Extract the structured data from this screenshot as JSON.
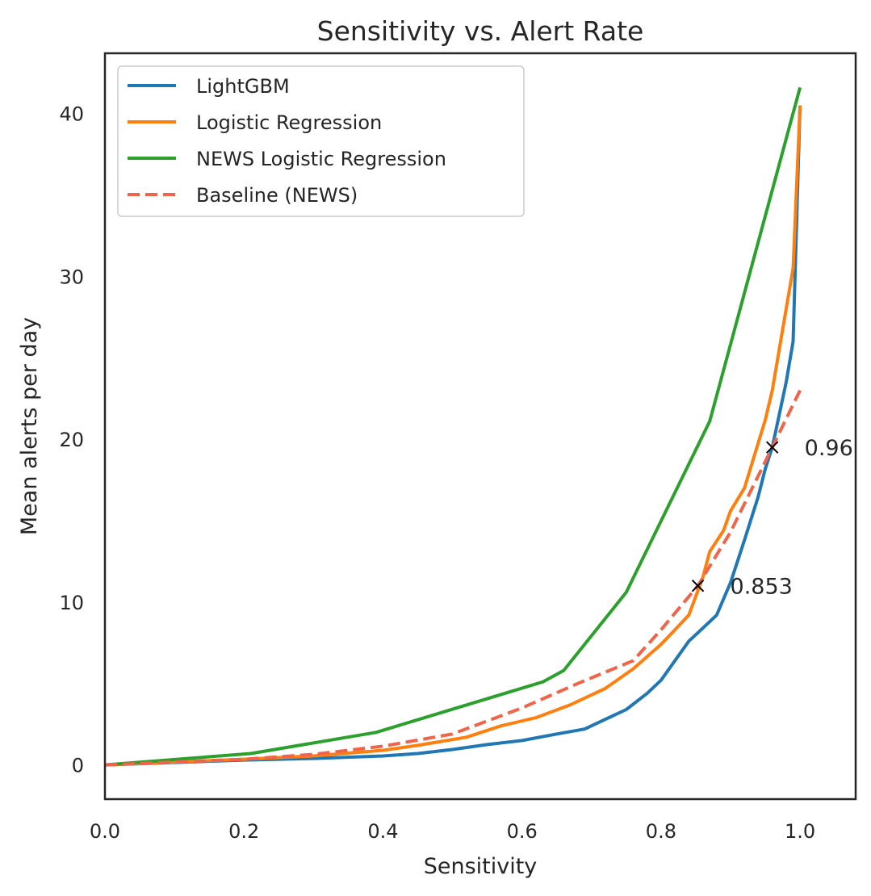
{
  "chart_data": {
    "type": "line",
    "title": "Sensitivity vs. Alert Rate",
    "xlabel": "Sensitivity",
    "ylabel": "Mean alerts per day",
    "xlim": [
      0.0,
      1.08
    ],
    "ylim": [
      -2.1,
      43.7
    ],
    "xticks": [
      "0.0",
      "0.2",
      "0.4",
      "0.6",
      "0.8",
      "1.0"
    ],
    "yticks": [
      "0",
      "10",
      "20",
      "30",
      "40"
    ],
    "grid": false,
    "legend": "top-left",
    "series": [
      {
        "name": "LightGBM",
        "color": "#1f77b4",
        "style": "solid",
        "points": [
          [
            0.0,
            0.0
          ],
          [
            0.2,
            0.3
          ],
          [
            0.3,
            0.4
          ],
          [
            0.4,
            0.55
          ],
          [
            0.45,
            0.7
          ],
          [
            0.5,
            0.95
          ],
          [
            0.55,
            1.25
          ],
          [
            0.6,
            1.5
          ],
          [
            0.65,
            1.9
          ],
          [
            0.69,
            2.2
          ],
          [
            0.72,
            2.8
          ],
          [
            0.75,
            3.4
          ],
          [
            0.78,
            4.4
          ],
          [
            0.8,
            5.2
          ],
          [
            0.82,
            6.4
          ],
          [
            0.84,
            7.6
          ],
          [
            0.86,
            8.4
          ],
          [
            0.88,
            9.2
          ],
          [
            0.9,
            11.2
          ],
          [
            0.92,
            13.8
          ],
          [
            0.94,
            16.5
          ],
          [
            0.95,
            18.2
          ],
          [
            0.96,
            19.5
          ],
          [
            0.97,
            21.5
          ],
          [
            0.98,
            23.5
          ],
          [
            0.99,
            26.0
          ],
          [
            1.0,
            40.5
          ]
        ]
      },
      {
        "name": "Logistic Regression",
        "color": "#ff7f0e",
        "style": "solid",
        "points": [
          [
            0.0,
            0.0
          ],
          [
            0.2,
            0.35
          ],
          [
            0.3,
            0.55
          ],
          [
            0.4,
            0.9
          ],
          [
            0.45,
            1.2
          ],
          [
            0.52,
            1.7
          ],
          [
            0.57,
            2.4
          ],
          [
            0.62,
            2.9
          ],
          [
            0.67,
            3.7
          ],
          [
            0.72,
            4.7
          ],
          [
            0.76,
            5.9
          ],
          [
            0.8,
            7.4
          ],
          [
            0.82,
            8.3
          ],
          [
            0.84,
            9.2
          ],
          [
            0.86,
            11.5
          ],
          [
            0.87,
            13.1
          ],
          [
            0.89,
            14.4
          ],
          [
            0.9,
            15.6
          ],
          [
            0.92,
            17.0
          ],
          [
            0.95,
            21.2
          ],
          [
            0.96,
            23.0
          ],
          [
            0.97,
            25.5
          ],
          [
            0.98,
            28.0
          ],
          [
            0.99,
            30.5
          ],
          [
            1.0,
            40.5
          ]
        ]
      },
      {
        "name": "NEWS Logistic Regression",
        "color": "#2ca02c",
        "style": "solid",
        "points": [
          [
            0.0,
            0.0
          ],
          [
            0.21,
            0.7
          ],
          [
            0.39,
            2.0
          ],
          [
            0.63,
            5.1
          ],
          [
            0.66,
            5.8
          ],
          [
            0.75,
            10.6
          ],
          [
            0.87,
            21.1
          ],
          [
            1.0,
            41.6
          ]
        ]
      },
      {
        "name": "Baseline (NEWS)",
        "color": "#f06449",
        "style": "dashed",
        "points": [
          [
            0.0,
            0.0
          ],
          [
            0.2,
            0.35
          ],
          [
            0.3,
            0.65
          ],
          [
            0.4,
            1.15
          ],
          [
            0.5,
            1.9
          ],
          [
            0.6,
            3.5
          ],
          [
            0.68,
            5.0
          ],
          [
            0.76,
            6.4
          ],
          [
            0.8,
            8.3
          ],
          [
            0.853,
            11.0
          ],
          [
            0.9,
            14.3
          ],
          [
            0.96,
            19.5
          ],
          [
            1.0,
            23.0
          ]
        ]
      }
    ],
    "annotations": [
      {
        "x": 0.853,
        "y": 11.0,
        "label": "0.853",
        "marker": "x"
      },
      {
        "x": 0.96,
        "y": 19.5,
        "label": "0.96",
        "marker": "x"
      }
    ]
  }
}
